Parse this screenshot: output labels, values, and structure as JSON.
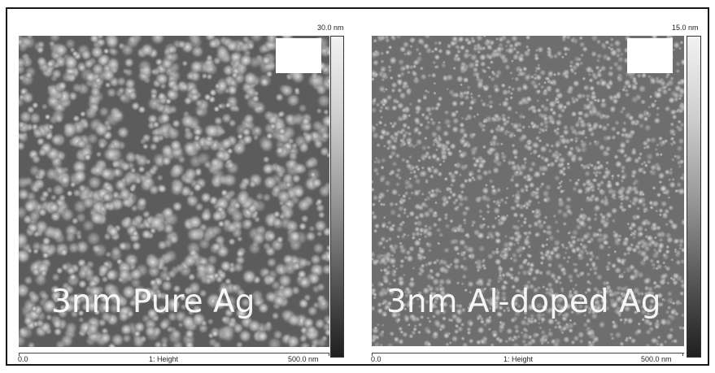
{
  "panels": [
    {
      "label": "3nm Pure Ag",
      "scale_max": "30.0 nm",
      "axis_start": "0.0",
      "axis_title": "1: Height",
      "axis_end": "500.0 nm"
    },
    {
      "label": "3nm Al-doped Ag",
      "scale_max": "15.0 nm",
      "axis_start": "0.0",
      "axis_title": "1: Height",
      "axis_end": "500.0 nm"
    }
  ],
  "colors": {
    "frame_border": "#151515",
    "image_background": "#6b6b6b"
  }
}
